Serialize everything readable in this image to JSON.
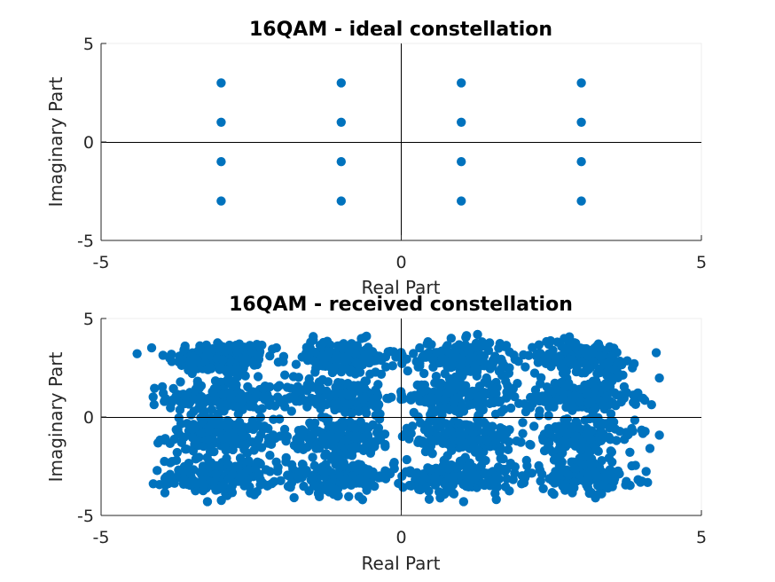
{
  "chart_data": [
    {
      "type": "scatter",
      "title": "16QAM - ideal constellation",
      "xlabel": "Real Part",
      "ylabel": "Imaginary Part",
      "xlim": [
        -5,
        5
      ],
      "ylim": [
        -5,
        5
      ],
      "xticks": [
        -5,
        0,
        5
      ],
      "yticks": [
        -5,
        0,
        5
      ],
      "grid": false,
      "marker_color": "#0072BD",
      "reference_lines": [
        "x=0",
        "y=0"
      ],
      "series": [
        {
          "x": [
            -3,
            -3,
            -3,
            -3,
            -1,
            -1,
            -1,
            -1,
            1,
            1,
            1,
            1,
            3,
            3,
            3,
            3
          ],
          "y": [
            3,
            1,
            -1,
            -3,
            3,
            1,
            -1,
            -3,
            3,
            1,
            -1,
            -3,
            3,
            1,
            -1,
            -3
          ]
        }
      ]
    },
    {
      "type": "scatter",
      "title": "16QAM - received constellation",
      "xlabel": "Real Part",
      "ylabel": "Imaginary Part",
      "xlim": [
        -5,
        5
      ],
      "ylim": [
        -5,
        5
      ],
      "xticks": [
        -5,
        0,
        5
      ],
      "yticks": [
        -5,
        0,
        5
      ],
      "grid": false,
      "marker_color": "#0072BD",
      "reference_lines": [
        "x=0",
        "y=0"
      ],
      "description_clusters": {
        "centers_x": [
          -3,
          -1,
          1,
          3
        ],
        "centers_y": [
          3,
          1,
          -1,
          -3
        ],
        "spread": 0.45,
        "extent_x": [
          -4.4,
          4.3
        ],
        "extent_y": [
          -4.3,
          4.3
        ]
      }
    }
  ]
}
